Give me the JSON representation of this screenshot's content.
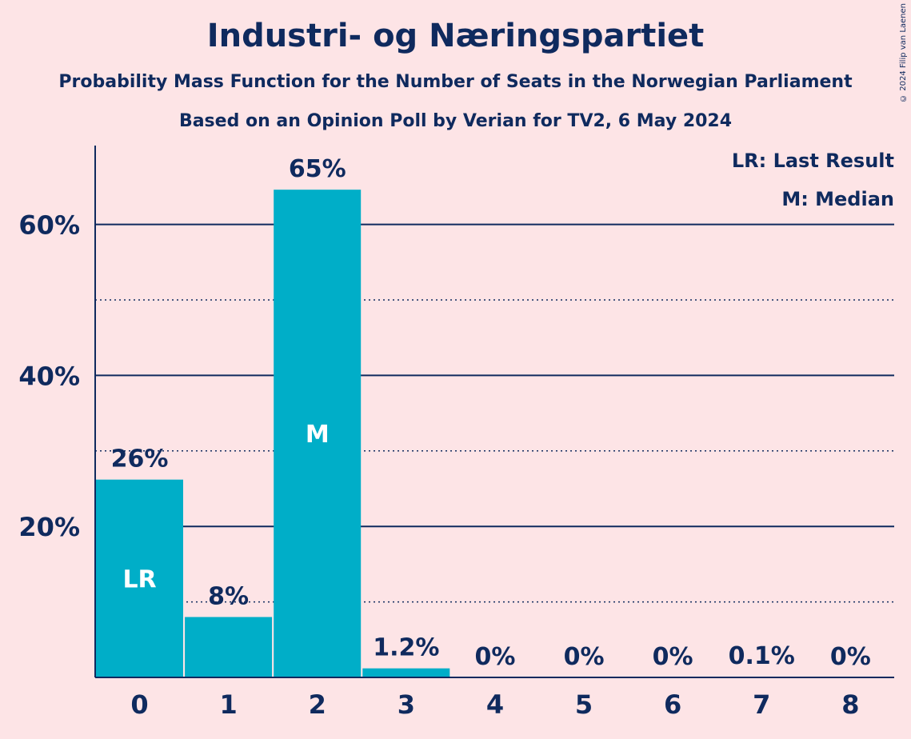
{
  "chart_data": {
    "type": "bar",
    "title": "Industri- og Næringspartiet",
    "subtitle": "Probability Mass Function for the Number of Seats in the Norwegian Parliament",
    "subtitle2": "Based on an Opinion Poll by Verian for TV2, 6 May 2024",
    "categories": [
      "0",
      "1",
      "2",
      "3",
      "4",
      "5",
      "6",
      "7",
      "8"
    ],
    "values": [
      26.2,
      8.0,
      64.6,
      1.2,
      0,
      0,
      0,
      0.1,
      0
    ],
    "data_labels": [
      "26%",
      "8%",
      "65%",
      "1.2%",
      "0%",
      "0%",
      "0%",
      "0.1%",
      "0%"
    ],
    "bar_markers": {
      "0": "LR",
      "2": "M"
    },
    "yticks": [
      20,
      40,
      60
    ],
    "ytick_labels": [
      "20%",
      "40%",
      "60%"
    ],
    "minor_yticks": [
      10,
      30,
      50
    ],
    "ylim": [
      0,
      70
    ],
    "legend": [
      "LR: Last Result",
      "M: Median"
    ],
    "legend_position": "top-right",
    "bar_color": "#00aec8",
    "text_color": "#0f2a5e",
    "background_color": "#fde4e6"
  },
  "copyright": "© 2024 Filip van Laenen"
}
